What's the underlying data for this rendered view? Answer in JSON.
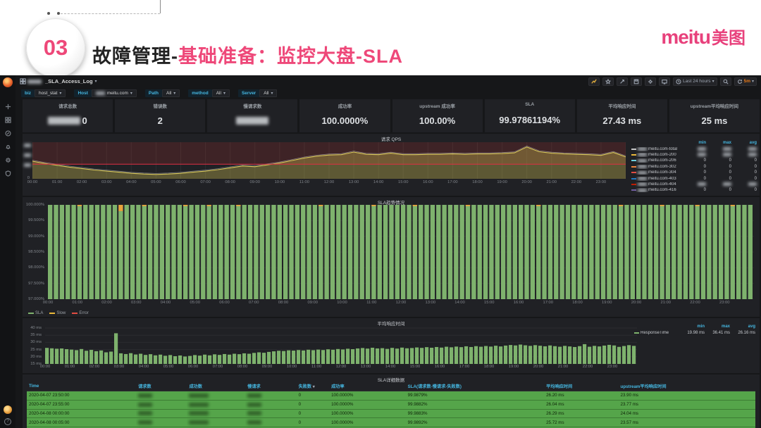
{
  "slide": {
    "number": "03",
    "title_black": "故障管理-",
    "title_pink": "基础准备：监控大盘-SLA",
    "logo_en": "meitu",
    "logo_cn": "美图",
    "accent_pink": "#e8427c"
  },
  "sidebar": {
    "icons": [
      "plus",
      "dashboards-grid",
      "explore-compass",
      "alert-bell",
      "settings-gear",
      "shield"
    ],
    "bottom_icons": [
      "user-avatar",
      "help"
    ]
  },
  "nav": {
    "dashboard_title": "_SLA_Access_Log",
    "time_range": "Last 24 hours",
    "refresh_interval": "5m",
    "icon_buttons": [
      "add-panel",
      "star",
      "share",
      "save",
      "settings",
      "tv-mode",
      "time-range",
      "search",
      "refresh"
    ]
  },
  "variables": [
    {
      "label": "biz",
      "value": "host_stat",
      "prefix_censored": false
    },
    {
      "label": "Host",
      "value": "meitu.com",
      "prefix_censored": true
    },
    {
      "label": "Path",
      "value": "All",
      "prefix_censored": false
    },
    {
      "label": "method",
      "value": "All",
      "prefix_censored": false
    },
    {
      "label": "Server",
      "value": "All",
      "prefix_censored": false
    }
  ],
  "stats": [
    {
      "title": "请求总数",
      "value": "0",
      "censored": true
    },
    {
      "title": "错误数",
      "value": "2",
      "censored": false
    },
    {
      "title": "慢请求数",
      "value": "",
      "censored": true
    },
    {
      "title": "成功率",
      "value": "100.0000%",
      "censored": false
    },
    {
      "title": "upstream 成功率",
      "value": "100.00%",
      "censored": false
    },
    {
      "title": "SLA",
      "value": "99.97861194%",
      "censored": false
    },
    {
      "title": "平均响应时间",
      "value": "27.43 ms",
      "censored": false
    },
    {
      "title": "upstream平均响应时间",
      "value": "25 ms",
      "censored": false
    }
  ],
  "chart_data": [
    {
      "id": "qps",
      "type": "area",
      "title": "请求 QPS",
      "x_ticks": [
        "00:00",
        "01:00",
        "02:00",
        "03:00",
        "04:00",
        "05:00",
        "06:00",
        "07:00",
        "08:00",
        "09:00",
        "10:00",
        "11:00",
        "12:00",
        "13:00",
        "14:00",
        "15:00",
        "16:00",
        "17:00",
        "18:00",
        "19:00",
        "20:00",
        "21:00",
        "22:00",
        "23:00"
      ],
      "y_axis": {
        "censored": true,
        "bottom_label": "0"
      },
      "ylim": [
        0,
        100
      ],
      "threshold": 40,
      "values": [
        48,
        42,
        37,
        32,
        28,
        24,
        21,
        18,
        15,
        13,
        12,
        13,
        15,
        18,
        21,
        25,
        30,
        35,
        33,
        38,
        43,
        50,
        57,
        62,
        65,
        66,
        73,
        67,
        66,
        70,
        66,
        66,
        67,
        67,
        68,
        67,
        68,
        68,
        69,
        71,
        87,
        74,
        70,
        68,
        67,
        66,
        64,
        72,
        60
      ],
      "colors": {
        "line": "#d8c85a",
        "fill": "rgba(209,191,80,0.35)",
        "total_line": "rgba(200,200,200,0.55)",
        "threshold_line": "#e02f44",
        "threshold_fill": "rgba(224,47,44,0.16)"
      },
      "legend": {
        "columns": [
          "min",
          "max",
          "avg"
        ],
        "series": [
          {
            "name": "meitu.com-total",
            "prefix_censored": true,
            "color": "#c7c7c7",
            "min": null,
            "max": null,
            "avg": null
          },
          {
            "name": "meitu.com-200",
            "prefix_censored": true,
            "color": "#eab839",
            "min": null,
            "max": null,
            "avg": null
          },
          {
            "name": "meitu.com-206",
            "prefix_censored": true,
            "color": "#6ed0e0",
            "min": "0",
            "max": "0",
            "avg": "0"
          },
          {
            "name": "meitu.com-302",
            "prefix_censored": true,
            "color": "#ef843c",
            "min": "0",
            "max": "0",
            "avg": "0"
          },
          {
            "name": "meitu.com-304",
            "prefix_censored": true,
            "color": "#e24d42",
            "min": "0",
            "max": "0",
            "avg": "0"
          },
          {
            "name": "meitu.com-403",
            "prefix_censored": true,
            "color": "#1f78c1",
            "min": "0",
            "max": "0",
            "avg": "0"
          },
          {
            "name": "meitu.com-404",
            "prefix_censored": true,
            "color": "#bf1b00",
            "min": null,
            "max": null,
            "avg": null
          },
          {
            "name": "meitu.com-416",
            "prefix_censored": true,
            "color": "#705da0",
            "min": "0",
            "max": "0",
            "avg": "0"
          }
        ]
      }
    },
    {
      "id": "sla",
      "type": "bar",
      "title": "SLA趋势情况",
      "y_ticks": [
        "100.000%",
        "99.500%",
        "99.000%",
        "98.500%",
        "98.000%",
        "97.500%",
        "97.000%"
      ],
      "ylim": [
        97,
        100
      ],
      "x_ticks": [
        "00:00",
        "01:00",
        "02:00",
        "03:00",
        "04:00",
        "05:00",
        "06:00",
        "07:00",
        "08:00",
        "09:00",
        "10:00",
        "11:00",
        "12:00",
        "13:00",
        "14:00",
        "15:00",
        "16:00",
        "17:00",
        "18:00",
        "19:00",
        "20:00",
        "21:00",
        "22:00",
        "23:00"
      ],
      "bar_count": 120,
      "default_value": 100,
      "dips": [
        {
          "index": 12,
          "value": 99.8
        }
      ],
      "orange_tip_indices": [
        5,
        16,
        23,
        27,
        32,
        46,
        55,
        62,
        71,
        83,
        97,
        104,
        110,
        116
      ],
      "colors": {
        "bar": "#7eb26d",
        "slow": "#e8a33d"
      },
      "legend": [
        {
          "label": "SLA",
          "color": "#7eb26d"
        },
        {
          "label": "Slow",
          "color": "#eab839"
        },
        {
          "label": "Error",
          "color": "#e24d42"
        }
      ]
    },
    {
      "id": "rt",
      "type": "bar",
      "title": "平均响应时间",
      "y_ticks": [
        "40 ms",
        "35 ms",
        "30 ms",
        "25 ms",
        "20 ms",
        "15 ms"
      ],
      "y_tick_values": [
        40,
        35,
        30,
        25,
        20,
        15
      ],
      "ylim": [
        15,
        41.5
      ],
      "x_ticks": [
        "00:00",
        "01:00",
        "02:00",
        "03:00",
        "04:00",
        "05:00",
        "06:00",
        "07:00",
        "08:00",
        "09:00",
        "10:00",
        "11:00",
        "12:00",
        "13:00",
        "14:00",
        "15:00",
        "16:00",
        "17:00",
        "18:00",
        "19:00",
        "20:00",
        "21:00",
        "22:00",
        "23:00"
      ],
      "values": [
        26.2,
        25.9,
        25.6,
        25.8,
        25.3,
        25.0,
        24.6,
        25.4,
        24.2,
        24.8,
        23.9,
        24.4,
        23.1,
        23.6,
        36.4,
        22.4,
        21.9,
        22.5,
        21.6,
        22.1,
        21.3,
        21.8,
        21.0,
        21.5,
        20.7,
        21.2,
        20.4,
        20.9,
        20.2,
        20.6,
        21.2,
        20.8,
        21.5,
        21.0,
        21.7,
        21.3,
        21.9,
        21.5,
        22.1,
        21.8,
        22.4,
        22.1,
        22.7,
        23.1,
        22.8,
        23.4,
        23.8,
        24.2,
        24.0,
        24.5,
        24.3,
        24.7,
        24.4,
        24.9,
        24.6,
        25.0,
        24.7,
        25.2,
        24.9,
        25.4,
        25.1,
        25.6,
        25.3,
        25.8,
        26.1,
        25.7,
        26.3,
        25.8,
        26.0,
        25.5,
        26.2,
        25.7,
        26.4,
        25.9,
        26.1,
        26.5,
        26.2,
        26.7,
        26.3,
        26.8,
        26.4,
        27.0,
        26.6,
        27.1,
        26.7,
        27.3,
        26.8,
        27.4,
        27.0,
        27.5,
        27.1,
        27.7,
        27.2,
        27.8,
        28.2,
        27.9,
        28.5,
        28.0,
        27.6,
        28.1,
        27.7,
        27.3,
        27.9,
        27.4,
        27.0,
        27.6,
        27.2,
        26.8,
        27.4,
        28.8,
        27.0,
        27.6,
        27.2,
        27.8,
        28.3,
        27.9,
        26.9,
        27.5,
        28.1,
        27.6
      ],
      "colors": {
        "bar": "#7eb26d"
      },
      "legend": {
        "columns": [
          "min",
          "max",
          "avg"
        ],
        "series": [
          {
            "name": "ResponseTime",
            "color": "#7eb26d",
            "min": "19.98 ms",
            "max": "36.41 ms",
            "avg": "26.16 ms"
          }
        ]
      }
    },
    {
      "id": "sla_table",
      "type": "table",
      "title": "SLA详细数据",
      "columns": [
        "Time",
        "请求数",
        "成功数",
        "慢请求",
        "失败数",
        "成功率",
        "SLA(请求数-慢请求-失败数)",
        "平均响应时间",
        "upstream平均响应时间"
      ],
      "sorted_column": "失败数",
      "rows": [
        [
          "2020-04-07 23:50:00",
          null,
          null,
          null,
          "0",
          "100.0000%",
          "99.9879%",
          "26.20 ms",
          "23.90 ms"
        ],
        [
          "2020-04-07 23:55:00",
          null,
          null,
          null,
          "0",
          "100.0000%",
          "99.9882%",
          "26.04 ms",
          "23.77 ms"
        ],
        [
          "2020-04-08 00:00:00",
          null,
          null,
          null,
          "0",
          "100.0000%",
          "99.9883%",
          "26.29 ms",
          "24.04 ms"
        ],
        [
          "2020-04-08 00:05:00",
          null,
          null,
          null,
          "0",
          "100.0000%",
          "99.9892%",
          "25.72 ms",
          "23.57 ms"
        ],
        [
          "2020-04-08 00:10:00",
          null,
          null,
          null,
          "0",
          "100.0000%",
          "99.9910%",
          "25.55 ms",
          "23.22 ms"
        ]
      ]
    }
  ]
}
